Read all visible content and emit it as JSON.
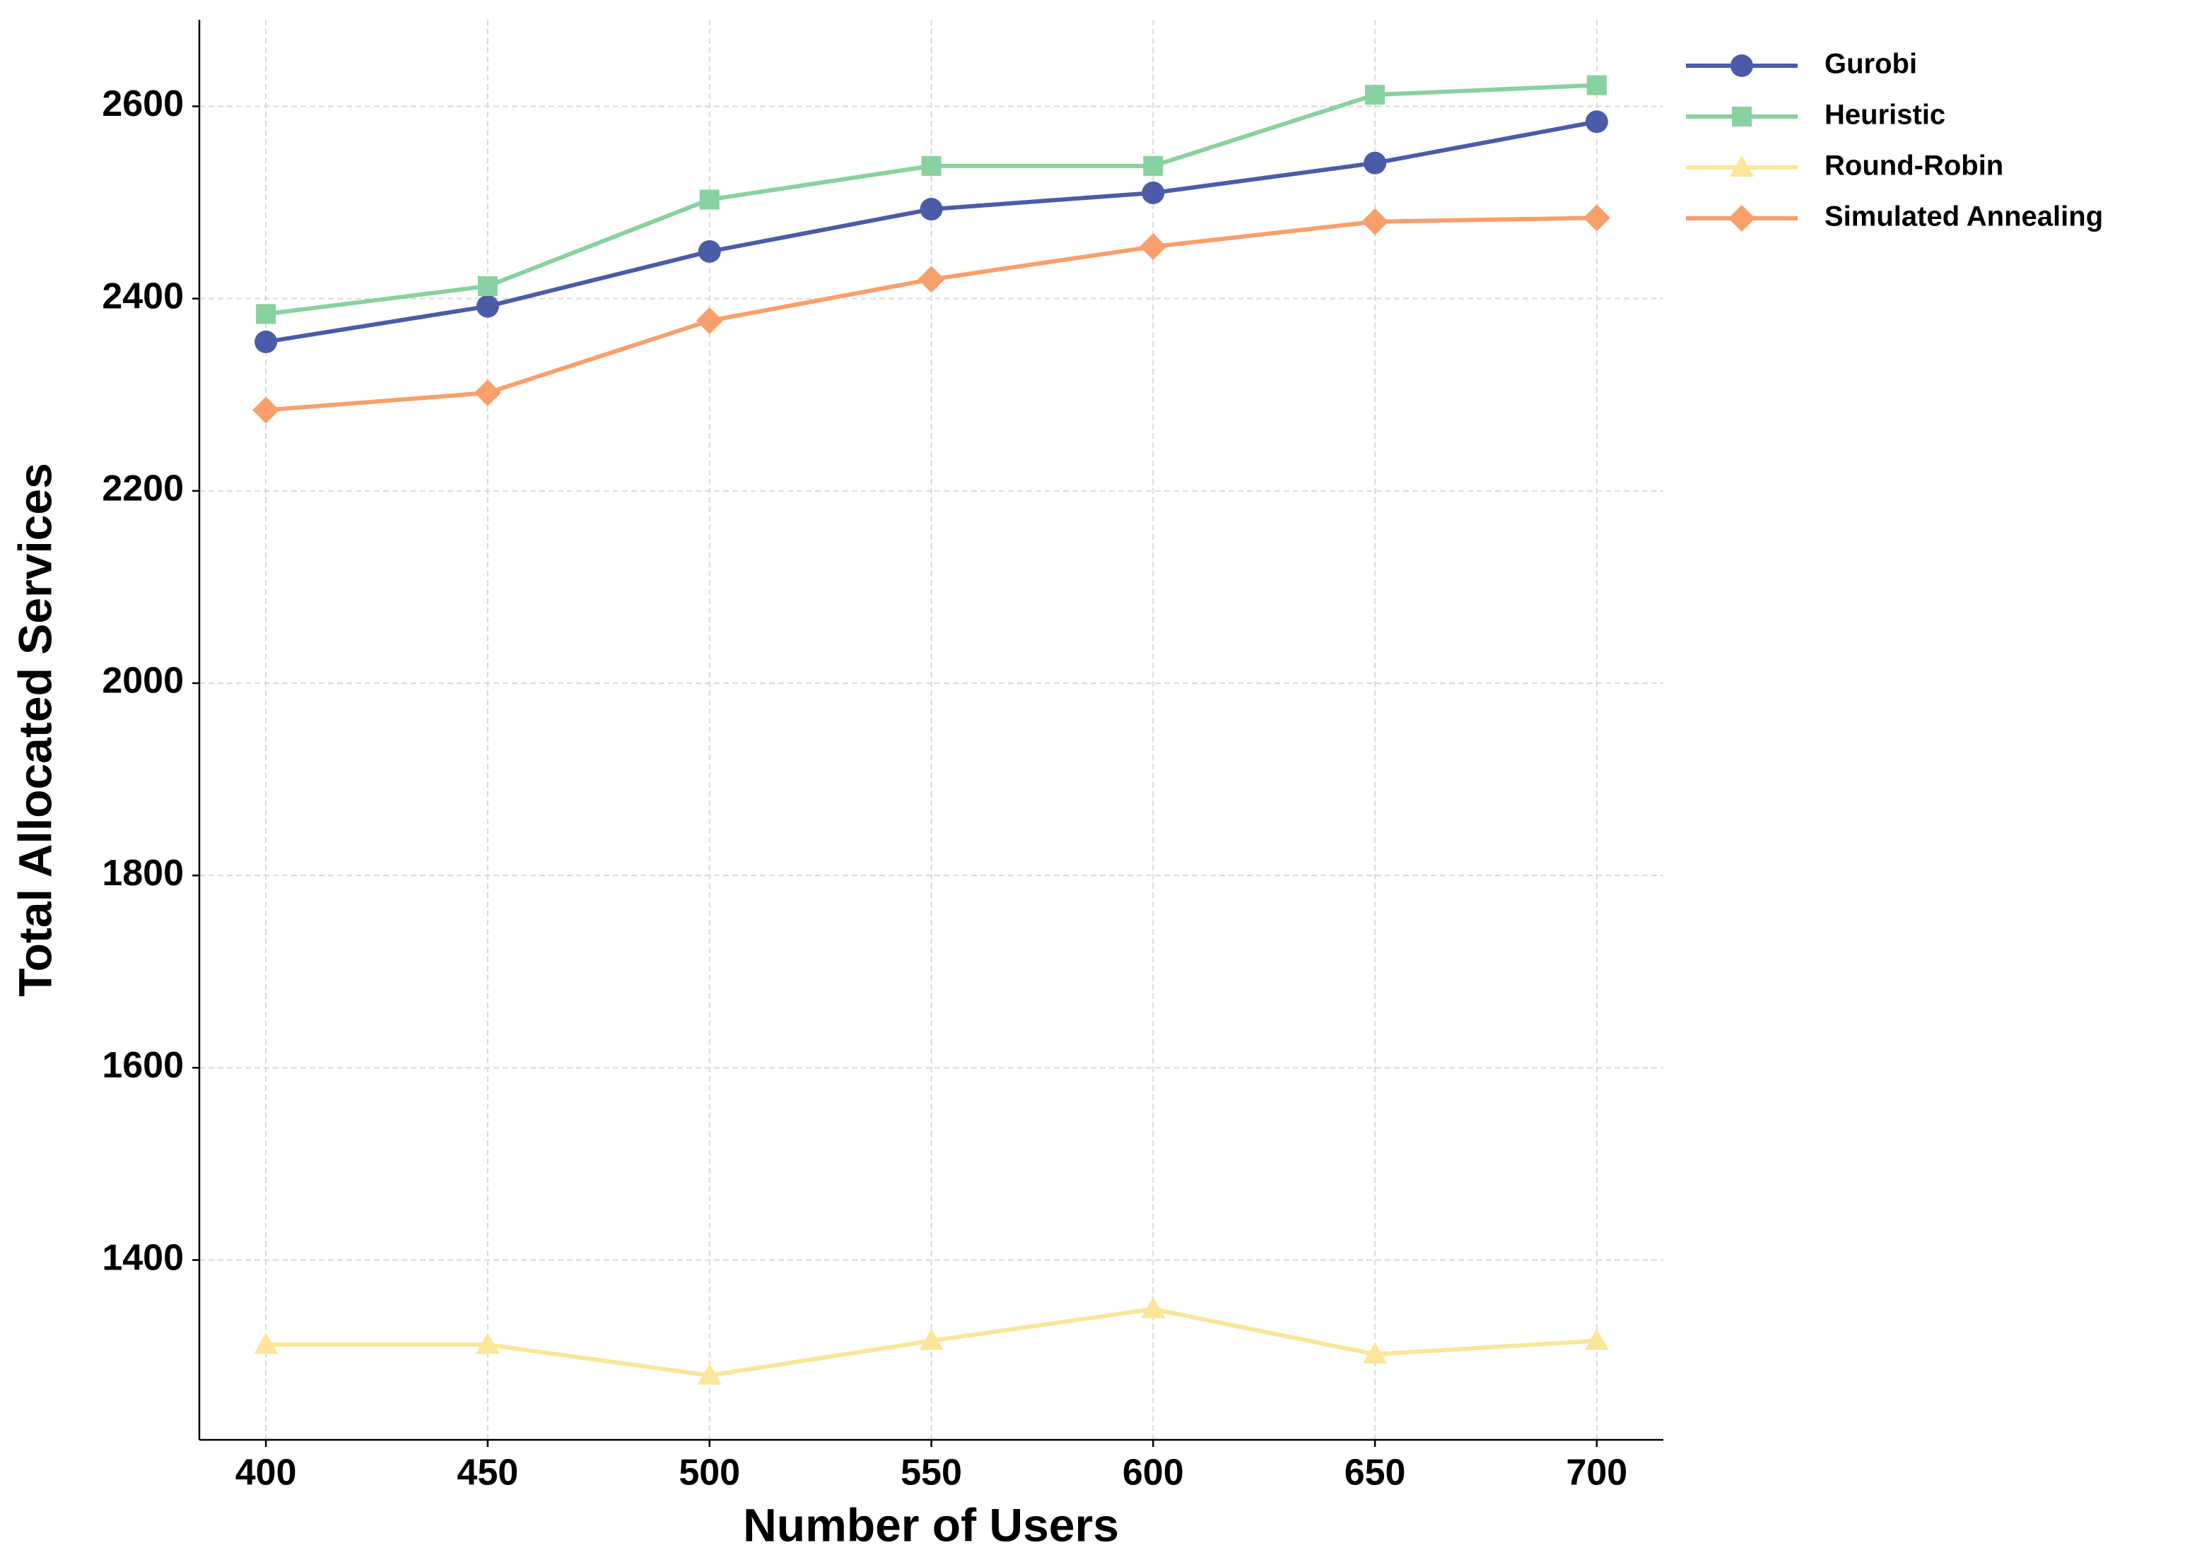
{
  "chart_data": {
    "type": "line",
    "x_label": "Number of Users",
    "y_label": "Total Allocated Services",
    "x": [
      400,
      450,
      500,
      550,
      600,
      650,
      700
    ],
    "series": [
      {
        "name": "Gurobi",
        "color": "#4a5ca8",
        "marker": "circle",
        "values": [
          2355,
          2392,
          2449,
          2493,
          2510,
          2541,
          2584
        ]
      },
      {
        "name": "Heuristic",
        "color": "#88d1a0",
        "marker": "square",
        "values": [
          2384,
          2413,
          2503,
          2538,
          2538,
          2612,
          2622
        ]
      },
      {
        "name": "Round-Robin",
        "color": "#fbe699",
        "marker": "triangle",
        "values": [
          1312,
          1312,
          1280,
          1316,
          1349,
          1302,
          1316
        ]
      },
      {
        "name": "Simulated Annealing",
        "color": "#f99f6b",
        "marker": "diamond",
        "values": [
          2284,
          2302,
          2377,
          2420,
          2454,
          2480,
          2484
        ]
      }
    ],
    "xlim": [
      385,
      715
    ],
    "xticks": [
      400,
      450,
      500,
      550,
      600,
      650,
      700
    ],
    "ylim": [
      1213,
      2690
    ],
    "yticks": [
      1400,
      1600,
      1800,
      2000,
      2200,
      2400,
      2600
    ],
    "grid": true,
    "legend": "outside-right"
  }
}
